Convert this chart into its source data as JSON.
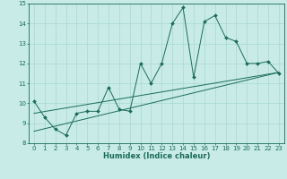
{
  "xlabel": "Humidex (Indice chaleur)",
  "bg_color": "#c8ebe8",
  "grid_color": "#a8d8d0",
  "line_color": "#1a6b5a",
  "xlim": [
    -0.5,
    23.5
  ],
  "ylim": [
    8,
    15
  ],
  "xticks": [
    0,
    1,
    2,
    3,
    4,
    5,
    6,
    7,
    8,
    9,
    10,
    11,
    12,
    13,
    14,
    15,
    16,
    17,
    18,
    19,
    20,
    21,
    22,
    23
  ],
  "yticks": [
    8,
    9,
    10,
    11,
    12,
    13,
    14,
    15
  ],
  "line1_x": [
    0,
    1,
    2,
    3,
    4,
    5,
    6,
    7,
    8,
    9,
    10,
    11,
    12,
    13,
    14,
    15,
    16,
    17,
    18,
    19,
    20,
    21,
    22,
    23
  ],
  "line1_y": [
    10.1,
    9.3,
    8.7,
    8.4,
    9.5,
    9.6,
    9.6,
    10.8,
    9.7,
    9.6,
    12.0,
    11.0,
    12.0,
    14.0,
    14.8,
    11.3,
    14.1,
    14.4,
    13.3,
    13.1,
    12.0,
    12.0,
    12.1,
    11.5
  ],
  "line2_x": [
    0,
    23
  ],
  "line2_y": [
    8.6,
    11.55
  ],
  "line3_x": [
    0,
    23
  ],
  "line3_y": [
    9.5,
    11.55
  ],
  "marker_style": "D",
  "marker_size": 2.0,
  "line_width": 0.7,
  "tick_fontsize": 5.0,
  "xlabel_fontsize": 6.0
}
